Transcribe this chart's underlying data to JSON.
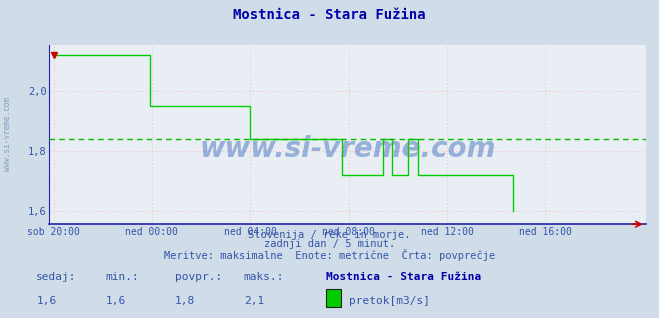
{
  "title": "Mostnica - Stara Fužina",
  "xlabel_ticks": [
    "sob 20:00",
    "ned 00:00",
    "ned 04:00",
    "ned 08:00",
    "ned 12:00",
    "ned 16:00"
  ],
  "xlabel_tick_positions": [
    0,
    48,
    96,
    144,
    192,
    240
  ],
  "ylabel_ticks": [
    1.6,
    1.8,
    2.0
  ],
  "ylim": [
    1.555,
    2.155
  ],
  "xlim": [
    -2,
    289
  ],
  "avg_line_y": 1.84,
  "line_color": "#00cc00",
  "avg_line_color": "#00bb00",
  "grid_color": "#ffaaaa",
  "bg_color": "#d0dce8",
  "plot_bg_color": "#e8eef4",
  "title_color": "#0000aa",
  "axis_color": "#3333aa",
  "tick_color": "#3355aa",
  "watermark": "www.si-vreme.com",
  "subtitle1": "Slovenija / reke in morje.",
  "subtitle2": "zadnji dan / 5 minut.",
  "subtitle3": "Meritve: maksimalne  Enote: metrične  Črta: povprečje",
  "info_sedaj_label": "sedaj:",
  "info_min_label": "min.:",
  "info_povpr_label": "povpr.:",
  "info_maks_label": "maks.:",
  "info_sedaj_val": "1,6",
  "info_min_val": "1,6",
  "info_povpr_val": "1,8",
  "info_maks_val": "2,1",
  "legend_station": "Mostnica - Stara Fužina",
  "legend_label": "pretok[m3/s]",
  "legend_color": "#00cc00",
  "data_y": [
    2.12,
    2.12,
    2.12,
    2.12,
    2.12,
    2.12,
    2.12,
    2.12,
    2.12,
    2.12,
    2.12,
    2.12,
    2.12,
    2.12,
    2.12,
    2.12,
    2.12,
    2.12,
    2.12,
    2.12,
    2.12,
    2.12,
    2.12,
    2.12,
    2.12,
    2.12,
    2.12,
    2.12,
    2.12,
    2.12,
    2.12,
    2.12,
    2.12,
    2.12,
    2.12,
    2.12,
    2.12,
    2.12,
    2.12,
    2.12,
    2.12,
    2.12,
    2.12,
    2.12,
    2.12,
    2.12,
    2.12,
    1.95,
    1.95,
    1.95,
    1.95,
    1.95,
    1.95,
    1.95,
    1.95,
    1.95,
    1.95,
    1.95,
    1.95,
    1.95,
    1.95,
    1.95,
    1.95,
    1.95,
    1.95,
    1.95,
    1.95,
    1.95,
    1.95,
    1.95,
    1.95,
    1.95,
    1.95,
    1.95,
    1.95,
    1.95,
    1.95,
    1.95,
    1.95,
    1.95,
    1.95,
    1.95,
    1.95,
    1.95,
    1.95,
    1.95,
    1.95,
    1.95,
    1.95,
    1.95,
    1.95,
    1.95,
    1.95,
    1.95,
    1.95,
    1.95,
    1.84,
    1.84,
    1.84,
    1.84,
    1.84,
    1.84,
    1.84,
    1.84,
    1.84,
    1.84,
    1.84,
    1.84,
    1.84,
    1.84,
    1.84,
    1.84,
    1.84,
    1.84,
    1.84,
    1.84,
    1.84,
    1.84,
    1.84,
    1.84,
    1.84,
    1.84,
    1.84,
    1.84,
    1.84,
    1.84,
    1.84,
    1.84,
    1.84,
    1.84,
    1.84,
    1.84,
    1.84,
    1.84,
    1.84,
    1.84,
    1.84,
    1.84,
    1.84,
    1.84,
    1.84,
    1.72,
    1.72,
    1.72,
    1.72,
    1.72,
    1.72,
    1.72,
    1.72,
    1.72,
    1.72,
    1.72,
    1.72,
    1.72,
    1.72,
    1.72,
    1.72,
    1.72,
    1.72,
    1.72,
    1.72,
    1.84,
    1.84,
    1.84,
    1.84,
    1.72,
    1.72,
    1.72,
    1.72,
    1.72,
    1.72,
    1.72,
    1.72,
    1.84,
    1.84,
    1.84,
    1.84,
    1.84,
    1.72,
    1.72,
    1.72,
    1.72,
    1.72,
    1.72,
    1.72,
    1.72,
    1.72,
    1.72,
    1.72,
    1.72,
    1.72,
    1.72,
    1.72,
    1.72,
    1.72,
    1.72,
    1.72,
    1.72,
    1.72,
    1.72,
    1.72,
    1.72,
    1.72,
    1.72,
    1.72,
    1.72,
    1.72,
    1.72,
    1.72,
    1.72,
    1.72,
    1.72,
    1.72,
    1.72,
    1.72,
    1.72,
    1.72,
    1.72,
    1.72,
    1.72,
    1.72,
    1.72,
    1.72,
    1.72,
    1.6
  ]
}
